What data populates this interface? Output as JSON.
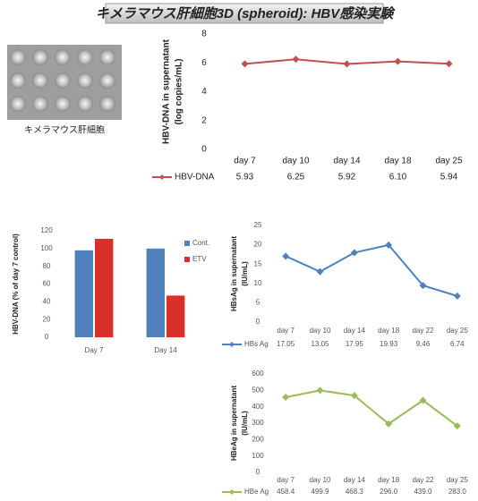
{
  "header": {
    "title": "キメラマウス肝細胞3D (spheroid): HBV感染実験"
  },
  "image": {
    "caption": "キメラマウス肝細胞"
  },
  "chart_data": [
    {
      "type": "line",
      "ylabel": [
        "HBV-DNA in supernatant",
        "(log copies/mL)"
      ],
      "categories": [
        "day 7",
        "day 10",
        "day 14",
        "day 18",
        "day 25"
      ],
      "series": [
        {
          "name": "HBV-DNA",
          "color": "#c0504d",
          "values": [
            5.93,
            6.25,
            5.92,
            6.1,
            5.94
          ],
          "value_labels": [
            "5.93",
            "6.25",
            "5.92",
            "6.10",
            "5.94"
          ]
        }
      ],
      "ylim": [
        0,
        8
      ],
      "yticks": [
        0,
        2,
        4,
        6,
        8
      ]
    },
    {
      "type": "bar",
      "ylabel": [
        "HBV-DNA (% of day 7 control)"
      ],
      "categories": [
        "Day 7",
        "Day 14"
      ],
      "series": [
        {
          "name": "Cont.",
          "color": "#4f81bd",
          "values": [
            98,
            100
          ]
        },
        {
          "name": "ETV",
          "color": "#d9302c",
          "values": [
            111,
            47
          ]
        }
      ],
      "ylim": [
        0,
        120
      ],
      "yticks": [
        0,
        20,
        40,
        60,
        80,
        100,
        120
      ]
    },
    {
      "type": "line",
      "ylabel": [
        "HBsAg in supernatant",
        "(IU/mL)"
      ],
      "categories": [
        "day 7",
        "day 10",
        "day 14",
        "day 18",
        "day 22",
        "day 25"
      ],
      "series": [
        {
          "name": "HBs Ag",
          "color": "#4f81bd",
          "values": [
            17.05,
            13.05,
            17.95,
            19.93,
            9.46,
            6.74
          ]
        }
      ],
      "ylim": [
        0,
        25
      ],
      "yticks": [
        0,
        5,
        10,
        15,
        20,
        25
      ]
    },
    {
      "type": "line",
      "ylabel": [
        "HBeAg in supernatant",
        "(IU/mL)"
      ],
      "categories": [
        "day 7",
        "day 10",
        "day 14",
        "day 18",
        "day 22",
        "day 25"
      ],
      "series": [
        {
          "name": "HBe Ag",
          "color": "#9bbb59",
          "values": [
            458.4,
            499.9,
            468.3,
            296.0,
            439.0,
            283.0
          ],
          "value_labels": [
            "458.4",
            "499.9",
            "468.3",
            "296.0",
            "439.0",
            "283.0"
          ]
        }
      ],
      "ylim": [
        0,
        600
      ],
      "yticks": [
        0,
        100,
        200,
        300,
        400,
        500,
        600
      ]
    }
  ]
}
